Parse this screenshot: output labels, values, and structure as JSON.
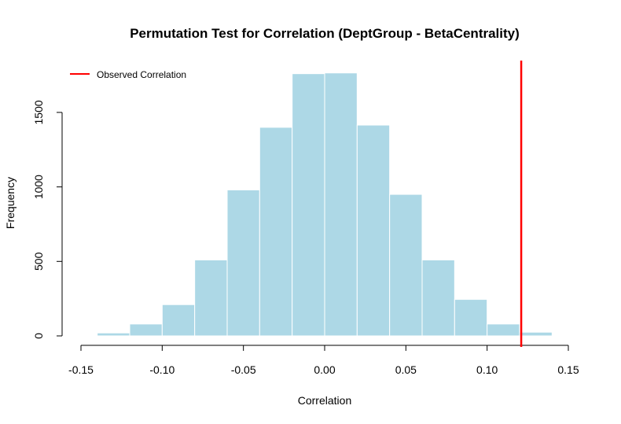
{
  "chart_data": {
    "type": "bar",
    "title": "Permutation Test for Correlation (DeptGroup - BetaCentrality)",
    "xlabel": "Correlation",
    "ylabel": "Frequency",
    "bin_edges": [
      -0.14,
      -0.12,
      -0.1,
      -0.08,
      -0.06,
      -0.04,
      -0.02,
      0.0,
      0.02,
      0.04,
      0.06,
      0.08,
      0.1,
      0.12,
      0.14
    ],
    "values": [
      20,
      80,
      210,
      510,
      980,
      1400,
      1760,
      1765,
      1415,
      950,
      510,
      245,
      80,
      25
    ],
    "xlim": [
      -0.15,
      0.15
    ],
    "ylim": [
      0,
      1850
    ],
    "x_ticks": [
      -0.15,
      -0.1,
      -0.05,
      0.0,
      0.05,
      0.1,
      0.15
    ],
    "x_tick_labels": [
      "-0.15",
      "-0.10",
      "-0.05",
      "0.00",
      "0.05",
      "0.10",
      "0.15"
    ],
    "y_ticks": [
      0,
      500,
      1000,
      1500
    ],
    "y_tick_labels": [
      "0",
      "500",
      "1000",
      "1500"
    ],
    "bar_color": "#ADD8E6",
    "bar_border_color": "#FFFFFF",
    "observed_line": {
      "x": 0.121,
      "color": "#FF0000"
    },
    "legend": {
      "position": "top-left",
      "entries": [
        {
          "label": "Observed Correlation",
          "color": "#FF0000"
        }
      ]
    },
    "grid": false
  }
}
